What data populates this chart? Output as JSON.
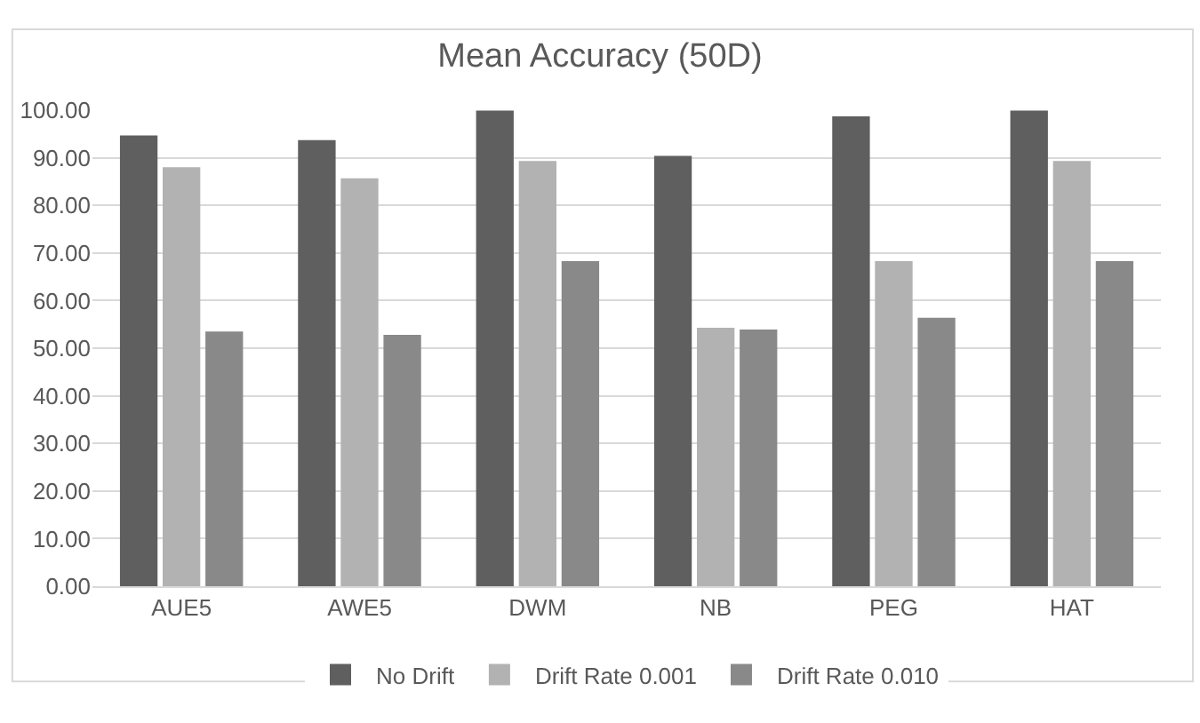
{
  "chart_data": {
    "type": "bar",
    "title": "Mean Accuracy (50D)",
    "categories": [
      "AUE5",
      "AWE5",
      "DWM",
      "NB",
      "PEG",
      "HAT"
    ],
    "series": [
      {
        "name": "No Drift",
        "color": "#5f5f5f",
        "values": [
          94.7,
          93.7,
          99.9,
          90.4,
          98.7,
          99.9
        ]
      },
      {
        "name": "Drift Rate 0.001",
        "color": "#b2b2b2",
        "values": [
          88.0,
          85.7,
          89.3,
          54.3,
          68.3,
          89.3
        ]
      },
      {
        "name": "Drift Rate 0.010",
        "color": "#898989",
        "values": [
          53.5,
          52.8,
          68.3,
          53.9,
          56.4,
          68.3
        ]
      }
    ],
    "ylim": [
      0,
      100
    ],
    "yticks": [
      {
        "value": 0,
        "label": "0.00"
      },
      {
        "value": 10,
        "label": "10.00"
      },
      {
        "value": 20,
        "label": "20.00"
      },
      {
        "value": 30,
        "label": "30.00"
      },
      {
        "value": 40,
        "label": "40.00"
      },
      {
        "value": 50,
        "label": "50.00"
      },
      {
        "value": 60,
        "label": "60.00"
      },
      {
        "value": 70,
        "label": "70.00"
      },
      {
        "value": 80,
        "label": "80.00"
      },
      {
        "value": 90,
        "label": "90.00"
      },
      {
        "value": 100,
        "label": "100.00"
      }
    ],
    "grid": "y",
    "legend": "bottom"
  }
}
